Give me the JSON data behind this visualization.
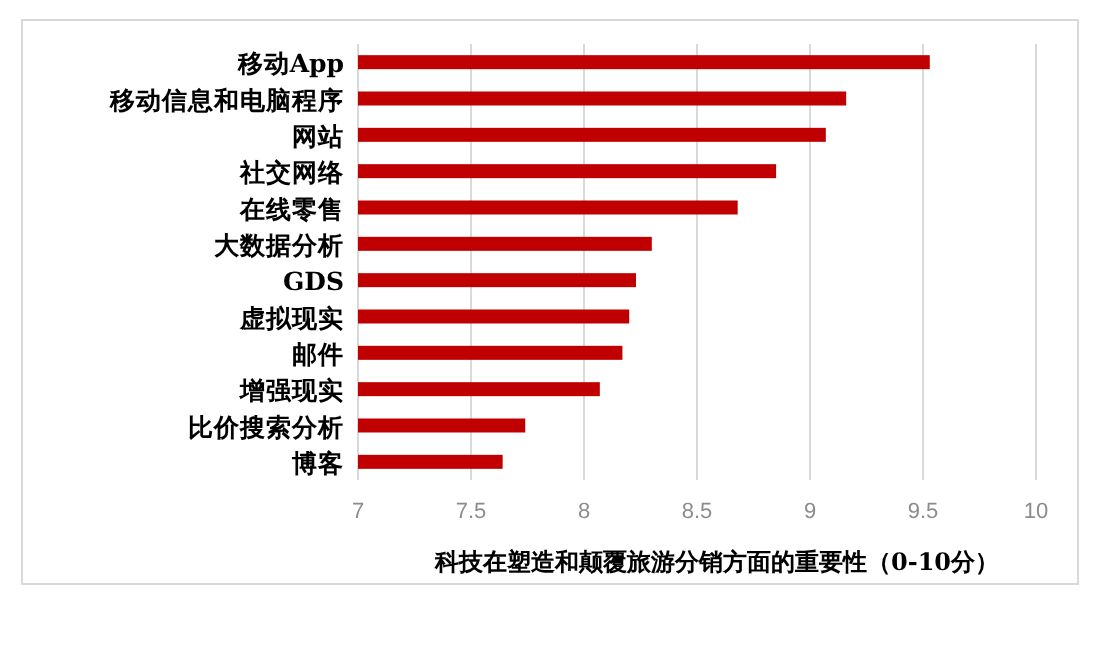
{
  "chart_data": {
    "type": "bar",
    "orientation": "horizontal",
    "xlabel": "科技在塑造和颠覆旅游分销方面的重要性（0-10分）",
    "categories": [
      "移动App",
      "移动信息和电脑程序",
      "网站",
      "社交网络",
      "在线零售",
      "大数据分析",
      "GDS",
      "虚拟现实",
      "邮件",
      "增强现实",
      "比价搜索分析",
      "博客"
    ],
    "values": [
      9.53,
      9.16,
      9.07,
      8.85,
      8.68,
      8.3,
      8.23,
      8.2,
      8.17,
      8.07,
      7.74,
      7.64
    ],
    "color": "#c00000",
    "xlim": [
      7,
      10
    ],
    "xticks": [
      7,
      7.5,
      8,
      8.5,
      9,
      9.5,
      10
    ],
    "grid": "x"
  }
}
